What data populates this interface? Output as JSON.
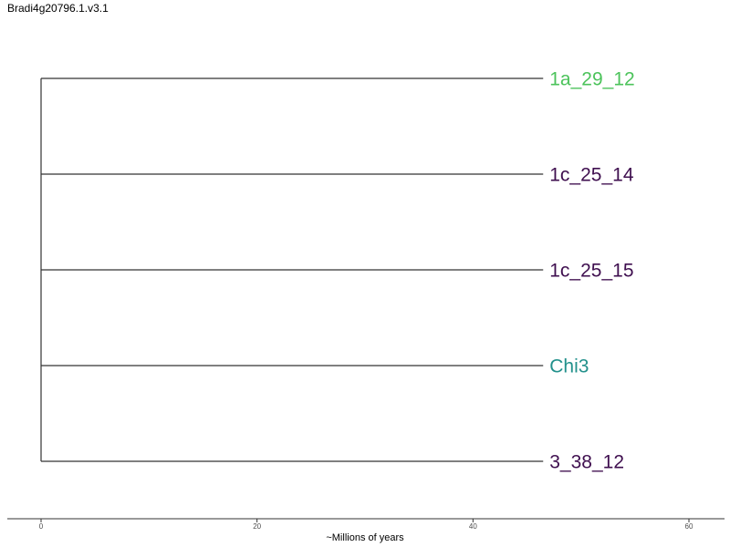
{
  "title": "Bradi4g20796.1.v3.1",
  "chart_data": {
    "type": "dendrogram",
    "title": "Bradi4g20796.1.v3.1",
    "xlabel": "~Millions of years",
    "xlim": [
      0,
      60
    ],
    "x_ticks": [
      0,
      20,
      40,
      60
    ],
    "x_tick_labels": [
      "0",
      "20",
      "40",
      "60"
    ],
    "grid": false,
    "root_age": 0,
    "tips": [
      {
        "label": "1a_29_12",
        "branch_length": 46.5,
        "color": "#4cc35b"
      },
      {
        "label": "1c_25_14",
        "branch_length": 46.5,
        "color": "#3f0f4f"
      },
      {
        "label": "1c_25_15",
        "branch_length": 46.5,
        "color": "#3f0f4f"
      },
      {
        "label": "Chi3",
        "branch_length": 46.5,
        "color": "#23918c"
      },
      {
        "label": "3_38_12",
        "branch_length": 46.5,
        "color": "#3f0f4f"
      }
    ]
  }
}
